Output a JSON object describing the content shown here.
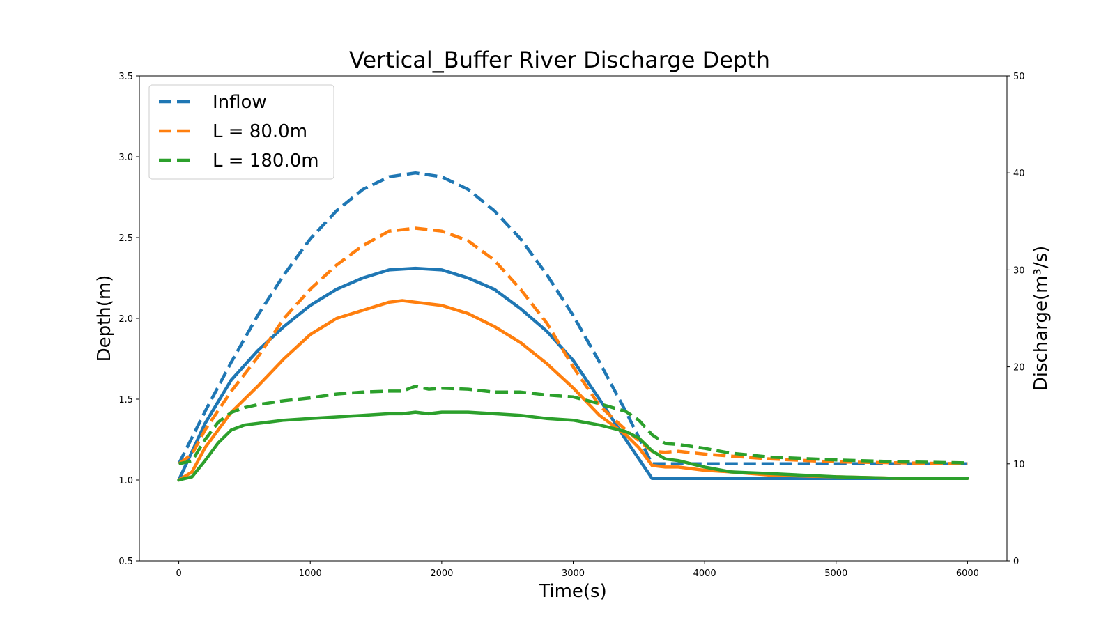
{
  "chart_data": {
    "type": "line",
    "title": "Vertical_Buffer River Discharge Depth",
    "xlabel": "Time(s)",
    "ylabel": "Depth(m)",
    "ylabel_right": "Discharge(m³/s)",
    "xlim": [
      -300,
      6300
    ],
    "ylim": [
      0.5,
      3.5
    ],
    "ylim_right": [
      0,
      50
    ],
    "xticks": [
      "0",
      "1000",
      "2000",
      "3000",
      "4000",
      "5000",
      "6000"
    ],
    "xtick_values": [
      0,
      1000,
      2000,
      3000,
      4000,
      5000,
      6000
    ],
    "yticks": [
      "0.5",
      "1.0",
      "1.5",
      "2.0",
      "2.5",
      "3.0",
      "3.5"
    ],
    "ytick_values": [
      0.5,
      1.0,
      1.5,
      2.0,
      2.5,
      3.0,
      3.5
    ],
    "yticks_right": [
      "0",
      "10",
      "20",
      "30",
      "40",
      "50"
    ],
    "ytick_values_right": [
      0,
      10,
      20,
      30,
      40,
      50
    ],
    "grid": false,
    "legend_position": "top-left",
    "legend": [
      {
        "label": "Inflow",
        "color": "#1f77b4"
      },
      {
        "label": "L = 80.0m",
        "color": "#ff7f0e"
      },
      {
        "label": "L = 180.0m",
        "color": "#2ca02c"
      }
    ],
    "series": [
      {
        "name": "Inflow",
        "quantity": "discharge",
        "axis": "right",
        "style": "dashed",
        "color": "#1f77b4",
        "x": [
          0,
          200,
          400,
          600,
          800,
          1000,
          1200,
          1400,
          1600,
          1800,
          2000,
          2200,
          2400,
          2600,
          2800,
          3000,
          3200,
          3400,
          3600,
          3700,
          4000,
          5000,
          6000
        ],
        "y": [
          10.0,
          15.4,
          20.5,
          25.3,
          29.5,
          33.2,
          36.1,
          38.3,
          39.6,
          40.0,
          39.6,
          38.3,
          36.1,
          33.2,
          29.5,
          25.3,
          20.5,
          15.4,
          10.0,
          10.0,
          10.0,
          10.0,
          10.0
        ]
      },
      {
        "name": "Inflow",
        "quantity": "depth",
        "axis": "left",
        "style": "solid",
        "color": "#1f77b4",
        "x": [
          0,
          200,
          400,
          600,
          800,
          1000,
          1200,
          1400,
          1600,
          1800,
          2000,
          2200,
          2400,
          2600,
          2800,
          3000,
          3200,
          3400,
          3600,
          3700,
          4000,
          5000,
          6000
        ],
        "y": [
          1.0,
          1.35,
          1.62,
          1.8,
          1.95,
          2.08,
          2.18,
          2.25,
          2.3,
          2.31,
          2.3,
          2.25,
          2.18,
          2.06,
          1.92,
          1.74,
          1.5,
          1.25,
          1.01,
          1.01,
          1.01,
          1.01,
          1.01
        ]
      },
      {
        "name": "L = 80.0m",
        "quantity": "discharge",
        "axis": "right",
        "style": "dashed",
        "color": "#ff7f0e",
        "x": [
          0,
          100,
          200,
          400,
          600,
          800,
          1000,
          1200,
          1400,
          1600,
          1800,
          2000,
          2200,
          2400,
          2600,
          2800,
          3000,
          3200,
          3400,
          3600,
          3700,
          3800,
          4000,
          4200,
          4500,
          5000,
          5500,
          6000
        ],
        "y": [
          10.0,
          11.0,
          13.5,
          17.5,
          21.0,
          25.0,
          28.0,
          30.5,
          32.5,
          34.0,
          34.3,
          34.0,
          33.0,
          31.0,
          28.0,
          24.5,
          20.0,
          16.0,
          13.5,
          11.3,
          11.2,
          11.3,
          11.0,
          10.8,
          10.5,
          10.2,
          10.1,
          10.0
        ]
      },
      {
        "name": "L = 80.0m",
        "quantity": "depth",
        "axis": "left",
        "style": "solid",
        "color": "#ff7f0e",
        "x": [
          0,
          100,
          200,
          400,
          600,
          800,
          1000,
          1200,
          1400,
          1600,
          1700,
          1800,
          2000,
          2200,
          2400,
          2600,
          2800,
          3000,
          3200,
          3400,
          3500,
          3600,
          3700,
          3800,
          4000,
          4200,
          4500,
          5000,
          5500,
          6000
        ],
        "y": [
          1.0,
          1.05,
          1.2,
          1.42,
          1.58,
          1.75,
          1.9,
          2.0,
          2.05,
          2.1,
          2.11,
          2.1,
          2.08,
          2.03,
          1.95,
          1.85,
          1.72,
          1.57,
          1.4,
          1.28,
          1.2,
          1.09,
          1.08,
          1.08,
          1.06,
          1.05,
          1.03,
          1.02,
          1.01,
          1.01
        ]
      },
      {
        "name": "L = 180.0m",
        "quantity": "discharge",
        "axis": "right",
        "style": "dashed",
        "color": "#2ca02c",
        "x": [
          0,
          100,
          200,
          300,
          400,
          500,
          600,
          800,
          1000,
          1200,
          1400,
          1600,
          1700,
          1800,
          1900,
          2000,
          2200,
          2400,
          2600,
          2800,
          3000,
          3200,
          3400,
          3500,
          3600,
          3700,
          3800,
          4000,
          4200,
          4500,
          5000,
          5500,
          6000
        ],
        "y": [
          10.0,
          10.3,
          12.5,
          14.3,
          15.3,
          15.8,
          16.1,
          16.5,
          16.8,
          17.2,
          17.4,
          17.5,
          17.5,
          18.0,
          17.7,
          17.8,
          17.7,
          17.4,
          17.4,
          17.1,
          16.9,
          16.2,
          15.4,
          14.5,
          13.0,
          12.1,
          12.0,
          11.6,
          11.1,
          10.7,
          10.4,
          10.2,
          10.1
        ]
      },
      {
        "name": "L = 180.0m",
        "quantity": "depth",
        "axis": "left",
        "style": "solid",
        "color": "#2ca02c",
        "x": [
          0,
          100,
          200,
          300,
          400,
          500,
          600,
          800,
          1000,
          1200,
          1400,
          1600,
          1700,
          1800,
          1900,
          2000,
          2200,
          2400,
          2600,
          2800,
          3000,
          3200,
          3400,
          3500,
          3600,
          3700,
          3800,
          4000,
          4200,
          4500,
          5000,
          5500,
          6000
        ],
        "y": [
          1.0,
          1.02,
          1.12,
          1.23,
          1.31,
          1.34,
          1.35,
          1.37,
          1.38,
          1.39,
          1.4,
          1.41,
          1.41,
          1.42,
          1.41,
          1.42,
          1.42,
          1.41,
          1.4,
          1.38,
          1.37,
          1.34,
          1.3,
          1.26,
          1.18,
          1.13,
          1.12,
          1.08,
          1.05,
          1.04,
          1.02,
          1.01,
          1.01
        ]
      }
    ]
  }
}
